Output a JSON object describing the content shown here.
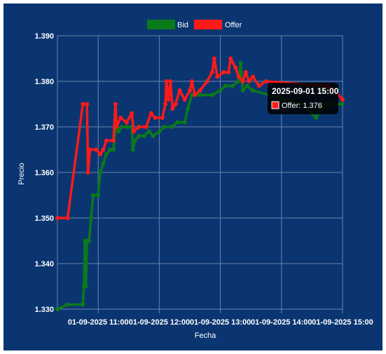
{
  "chart_data": {
    "type": "line",
    "xlabel": "Fecha",
    "ylabel": "Precio",
    "ylim": [
      1.33,
      1.39
    ],
    "yticks": [
      "1.390",
      "1.380",
      "1.370",
      "1.360",
      "1.350",
      "1.340",
      "1.330"
    ],
    "xlim": [
      "2025-09-01 10:20",
      "2025-09-01 15:00"
    ],
    "xticks": [
      {
        "t": "2025-09-01 11:00",
        "label": "01-09-2025 11:00"
      },
      {
        "t": "2025-09-01 12:00",
        "label": "01-09-2025 12:00"
      },
      {
        "t": "2025-09-01 13:00",
        "label": "01-09-2025 13:00"
      },
      {
        "t": "2025-09-01 14:00",
        "label": "01-09-2025 14:00"
      },
      {
        "t": "2025-09-01 15:00",
        "label": "01-09-2025 15:00"
      }
    ],
    "grid": true,
    "legend_position": "top-center",
    "series": [
      {
        "name": "Bid",
        "color": "#0a7a1a",
        "points": [
          [
            "2025-09-01 10:20",
            1.33
          ],
          [
            "2025-09-01 10:30",
            1.331
          ],
          [
            "2025-09-01 10:45",
            1.331
          ],
          [
            "2025-09-01 10:46",
            1.335
          ],
          [
            "2025-09-01 10:47",
            1.345
          ],
          [
            "2025-09-01 10:48",
            1.335
          ],
          [
            "2025-09-01 10:49",
            1.345
          ],
          [
            "2025-09-01 10:51",
            1.345
          ],
          [
            "2025-09-01 10:53",
            1.35
          ],
          [
            "2025-09-01 10:55",
            1.355
          ],
          [
            "2025-09-01 11:00",
            1.355
          ],
          [
            "2025-09-01 11:02",
            1.36
          ],
          [
            "2025-09-01 11:05",
            1.362
          ],
          [
            "2025-09-01 11:08",
            1.364
          ],
          [
            "2025-09-01 11:12",
            1.365
          ],
          [
            "2025-09-01 11:15",
            1.365
          ],
          [
            "2025-09-01 11:17",
            1.37
          ],
          [
            "2025-09-01 11:20",
            1.369
          ],
          [
            "2025-09-01 11:23",
            1.37
          ],
          [
            "2025-09-01 11:28",
            1.37
          ],
          [
            "2025-09-01 11:33",
            1.37
          ],
          [
            "2025-09-01 11:34",
            1.365
          ],
          [
            "2025-09-01 11:36",
            1.367
          ],
          [
            "2025-09-01 11:40",
            1.368
          ],
          [
            "2025-09-01 11:45",
            1.368
          ],
          [
            "2025-09-01 11:50",
            1.369
          ],
          [
            "2025-09-01 11:54",
            1.368
          ],
          [
            "2025-09-01 12:00",
            1.369
          ],
          [
            "2025-09-01 12:05",
            1.37
          ],
          [
            "2025-09-01 12:12",
            1.37
          ],
          [
            "2025-09-01 12:18",
            1.371
          ],
          [
            "2025-09-01 12:25",
            1.371
          ],
          [
            "2025-09-01 12:28",
            1.374
          ],
          [
            "2025-09-01 12:32",
            1.377
          ],
          [
            "2025-09-01 12:40",
            1.377
          ],
          [
            "2025-09-01 12:52",
            1.377
          ],
          [
            "2025-09-01 13:00",
            1.378
          ],
          [
            "2025-09-01 13:05",
            1.379
          ],
          [
            "2025-09-01 13:12",
            1.379
          ],
          [
            "2025-09-01 13:18",
            1.38
          ],
          [
            "2025-09-01 13:20",
            1.384
          ],
          [
            "2025-09-01 13:22",
            1.378
          ],
          [
            "2025-09-01 13:26",
            1.379
          ],
          [
            "2025-09-01 13:32",
            1.378
          ],
          [
            "2025-09-01 14:20",
            1.375
          ],
          [
            "2025-09-01 14:30",
            1.373
          ],
          [
            "2025-09-01 14:34",
            1.372
          ],
          [
            "2025-09-01 14:38",
            1.374
          ],
          [
            "2025-09-01 14:45",
            1.375
          ],
          [
            "2025-09-01 14:55",
            1.375
          ],
          [
            "2025-09-01 15:00",
            1.375
          ]
        ]
      },
      {
        "name": "Offer",
        "color": "#ff1a1a",
        "points": [
          [
            "2025-09-01 10:20",
            1.35
          ],
          [
            "2025-09-01 10:30",
            1.35
          ],
          [
            "2025-09-01 10:45",
            1.375
          ],
          [
            "2025-09-01 10:49",
            1.375
          ],
          [
            "2025-09-01 10:50",
            1.36
          ],
          [
            "2025-09-01 10:52",
            1.365
          ],
          [
            "2025-09-01 10:58",
            1.365
          ],
          [
            "2025-09-01 11:02",
            1.364
          ],
          [
            "2025-09-01 11:05",
            1.365
          ],
          [
            "2025-09-01 11:08",
            1.367
          ],
          [
            "2025-09-01 11:15",
            1.367
          ],
          [
            "2025-09-01 11:17",
            1.375
          ],
          [
            "2025-09-01 11:18",
            1.37
          ],
          [
            "2025-09-01 11:22",
            1.372
          ],
          [
            "2025-09-01 11:28",
            1.371
          ],
          [
            "2025-09-01 11:33",
            1.373
          ],
          [
            "2025-09-01 11:35",
            1.369
          ],
          [
            "2025-09-01 11:40",
            1.37
          ],
          [
            "2025-09-01 11:47",
            1.37
          ],
          [
            "2025-09-01 11:52",
            1.373
          ],
          [
            "2025-09-01 11:56",
            1.372
          ],
          [
            "2025-09-01 12:03",
            1.372
          ],
          [
            "2025-09-01 12:06",
            1.375
          ],
          [
            "2025-09-01 12:07",
            1.38
          ],
          [
            "2025-09-01 12:09",
            1.376
          ],
          [
            "2025-09-01 12:11",
            1.38
          ],
          [
            "2025-09-01 12:13",
            1.374
          ],
          [
            "2025-09-01 12:16",
            1.375
          ],
          [
            "2025-09-01 12:20",
            1.378
          ],
          [
            "2025-09-01 12:25",
            1.376
          ],
          [
            "2025-09-01 12:30",
            1.378
          ],
          [
            "2025-09-01 12:32",
            1.38
          ],
          [
            "2025-09-01 12:35",
            1.377
          ],
          [
            "2025-09-01 12:40",
            1.378
          ],
          [
            "2025-09-01 12:47",
            1.38
          ],
          [
            "2025-09-01 12:52",
            1.382
          ],
          [
            "2025-09-01 12:54",
            1.385
          ],
          [
            "2025-09-01 12:57",
            1.381
          ],
          [
            "2025-09-01 13:03",
            1.382
          ],
          [
            "2025-09-01 13:08",
            1.382
          ],
          [
            "2025-09-01 13:10",
            1.385
          ],
          [
            "2025-09-01 13:15",
            1.383
          ],
          [
            "2025-09-01 13:18",
            1.381
          ],
          [
            "2025-09-01 13:22",
            1.38
          ],
          [
            "2025-09-01 13:25",
            1.382
          ],
          [
            "2025-09-01 13:28",
            1.38
          ],
          [
            "2025-09-01 13:32",
            1.381
          ],
          [
            "2025-09-01 13:38",
            1.379
          ],
          [
            "2025-09-01 13:45",
            1.38
          ],
          [
            "2025-09-01 14:45",
            1.379
          ],
          [
            "2025-09-01 14:52",
            1.378
          ],
          [
            "2025-09-01 15:00",
            1.376
          ]
        ]
      }
    ],
    "tooltip": {
      "title": "2025-09-01 15:00",
      "body": "Offer: 1.376",
      "color": "#ff1a1a"
    }
  },
  "colors": {
    "background": "#0b3570",
    "grid": "#6b84ad",
    "text": "#ffffff"
  }
}
